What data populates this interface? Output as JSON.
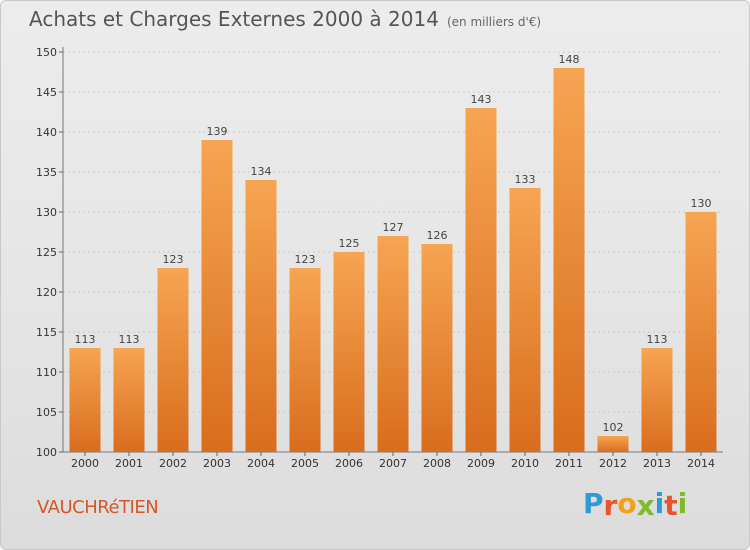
{
  "header": {
    "title": "Achats et Charges Externes 2000 à 2014",
    "subtitle": "(en milliers d'€)"
  },
  "footer": {
    "place": "VAUCHRéTIEN",
    "logo_letters": [
      "P",
      "r",
      "o",
      "x",
      "i",
      "t",
      "i"
    ],
    "logo_colors": [
      "#2e9ad8",
      "#e8542c",
      "#f2a21a",
      "#7dbb2b",
      "#2e9ad8",
      "#e8542c",
      "#7dbb2b"
    ]
  },
  "chart_data": {
    "type": "bar",
    "title": "Achats et Charges Externes 2000 à 2014",
    "subtitle": "(en milliers d'€)",
    "categories": [
      "2000",
      "2001",
      "2002",
      "2003",
      "2004",
      "2005",
      "2006",
      "2007",
      "2008",
      "2009",
      "2010",
      "2011",
      "2012",
      "2013",
      "2014"
    ],
    "values": [
      113,
      113,
      123,
      139,
      134,
      123,
      125,
      127,
      126,
      143,
      133,
      148,
      102,
      113,
      130
    ],
    "xlabel": "",
    "ylabel": "",
    "ylim": [
      100,
      150
    ],
    "yticks": [
      100,
      105,
      110,
      115,
      120,
      125,
      130,
      135,
      140,
      145,
      150
    ],
    "grid": true,
    "bar_color_top": "#f6a552",
    "bar_color_bottom": "#d96d1c"
  }
}
